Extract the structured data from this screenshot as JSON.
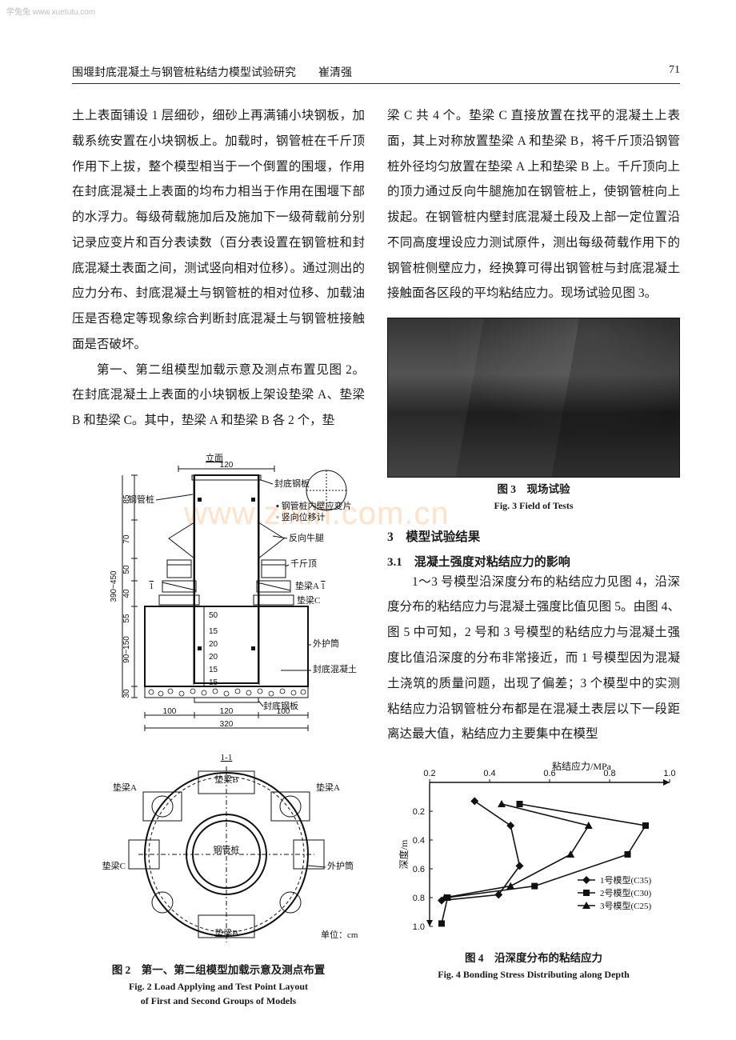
{
  "watermark_top": "学兔兔  www.xuetutu.com",
  "center_watermark": "www.zixin.com.cn",
  "header": {
    "title_left": "围堰封底混凝土与钢管桩粘结力模型试验研究　　崔清强",
    "page_no": "71"
  },
  "left": {
    "p1": "土上表面铺设 1 层细砂，细砂上再满铺小块钢板，加载系统安置在小块钢板上。加载时，钢管桩在千斤顶作用下上拔，整个模型相当于一个倒置的围堰，作用在封底混凝土上表面的均布力相当于作用在围堰下部的水浮力。每级荷载施加后及施加下一级荷载前分别记录应变片和百分表读数（百分表设置在钢管桩和封底混凝土表面之间，测试竖向相对位移）。通过测出的应力分布、封底混凝土与钢管桩的相对位移、加载油压是否稳定等现象综合判断封底混凝土与钢管桩接触面是否破坏。",
    "p2": "第一、第二组模型加载示意及测点布置见图 2。在封底混凝土上表面的小块钢板上架设垫梁 A、垫梁 B 和垫梁 C。其中，垫梁 A 和垫梁 B 各 2 个，垫",
    "fig2": {
      "caption_cn": "图 2　第一、第二组模型加载示意及测点布置",
      "caption_en1": "Fig. 2  Load Applying and Test Point Layout",
      "caption_en2": "of First and Second Groups of Models",
      "labels": {
        "limian": "立面",
        "ggz": "钢管桩",
        "fdgb": "封底钢板",
        "ggznb": "钢管桩内壁应变片",
        "sxwy": "竖向位移计",
        "fxnt": "反向牛腿",
        "qjd": "千斤顶",
        "dlA": "垫梁A",
        "dlB": "垫梁B",
        "dlC": "垫梁C",
        "whx": "外护筒",
        "fdhnt": "封底混凝土",
        "danwei": "单位：cm",
        "sec": "1-1",
        "sec_mark": "1",
        "dim_h_range": "390~450",
        "dim_90_150": "90~150",
        "dims_v": [
          "85",
          "70",
          "50",
          "40",
          "55",
          "30"
        ],
        "dims_small": [
          "15",
          "15",
          "20",
          "20",
          "15",
          "50"
        ],
        "dim_120": "120",
        "dim_100a": "100",
        "dim_100b": "100",
        "dim_320": "320"
      }
    }
  },
  "right": {
    "p1": "梁 C 共 4 个。垫梁 C 直接放置在找平的混凝土上表面，其上对称放置垫梁 A 和垫梁 B，将千斤顶沿钢管桩外径均匀放置在垫梁 A 上和垫梁 B 上。千斤顶向上的顶力通过反向牛腿施加在钢管桩上，使钢管桩向上拔起。在钢管桩内壁封底混凝土段及上部一定位置沿不同高度埋设应力测试原件，测出每级荷载作用下的钢管桩侧壁应力，经换算可得出钢管桩与封底混凝土接触面各区段的平均粘结应力。现场试验见图 3。",
    "fig3": {
      "caption_cn": "图 3　现场试验",
      "caption_en": "Fig. 3  Field of Tests"
    },
    "sec3": "3　模型试验结果",
    "sec31": "3.1　混凝土强度对粘结应力的影响",
    "p2": "1～3 号模型沿深度分布的粘结应力见图 4，沿深度分布的粘结应力与混凝土强度比值见图 5。由图 4、图 5 中可知，2 号和 3 号模型的粘结应力与混凝土强度比值沿深度的分布非常接近，而 1 号模型因为混凝土浇筑的质量问题，出现了偏差；3 个模型中的实测粘结应力沿钢管桩分布都是在混凝土表层以下一段距离达最大值，粘结应力主要集中在模型",
    "fig4": {
      "caption_cn": "图 4　沿深度分布的粘结应力",
      "caption_en": "Fig. 4  Bonding Stress Distributing along Depth",
      "x_title": "粘结应力/MPa",
      "y_title": "深度/m",
      "x_ticks": [
        "0.2",
        "0.4",
        "0.6",
        "0.8",
        "1.0"
      ],
      "y_ticks": [
        "0.2",
        "0.4",
        "0.6",
        "0.8",
        "1.0"
      ],
      "x_range": [
        0.2,
        1.0
      ],
      "y_range": [
        0.0,
        1.0
      ],
      "colors": {
        "axis": "#111",
        "series": "#111"
      },
      "legend": [
        {
          "marker": "diamond",
          "label": "1号模型(C35)"
        },
        {
          "marker": "square",
          "label": "2号模型(C30)"
        },
        {
          "marker": "triangle",
          "label": "3号模型(C25)"
        }
      ],
      "series": {
        "m1": [
          [
            0.35,
            0.13
          ],
          [
            0.47,
            0.3
          ],
          [
            0.5,
            0.58
          ],
          [
            0.43,
            0.78
          ],
          [
            0.24,
            0.82
          ]
        ],
        "m2": [
          [
            0.5,
            0.15
          ],
          [
            0.92,
            0.3
          ],
          [
            0.86,
            0.5
          ],
          [
            0.55,
            0.72
          ],
          [
            0.26,
            0.8
          ],
          [
            0.24,
            0.98
          ]
        ],
        "m3": [
          [
            0.44,
            0.15
          ],
          [
            0.73,
            0.3
          ],
          [
            0.67,
            0.5
          ],
          [
            0.47,
            0.72
          ],
          [
            0.25,
            0.8
          ]
        ]
      },
      "line_width": 1.6
    }
  }
}
